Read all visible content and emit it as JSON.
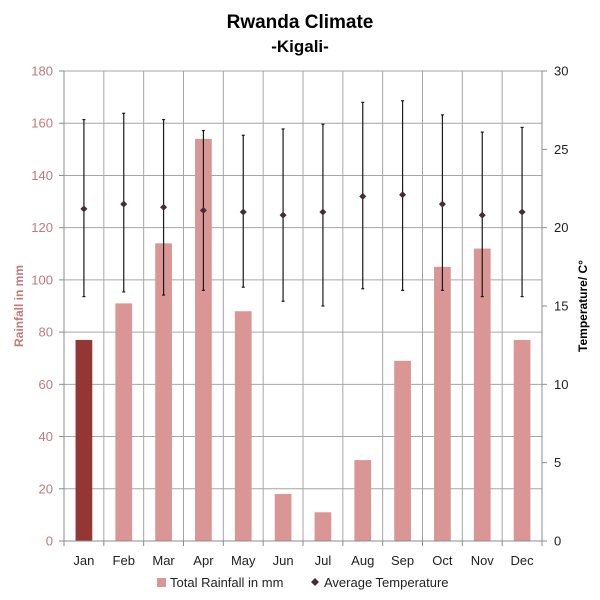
{
  "chart_data": {
    "type": "bar",
    "title": "Rwanda Climate",
    "subtitle": "-Kigali-",
    "categories": [
      "Jan",
      "Feb",
      "Mar",
      "Apr",
      "May",
      "Jun",
      "Jul",
      "Aug",
      "Sep",
      "Oct",
      "Nov",
      "Dec"
    ],
    "series": [
      {
        "name": "Total Rainfall in mm",
        "type": "bar",
        "axis": "left",
        "values": [
          77,
          91,
          114,
          154,
          88,
          18,
          11,
          31,
          69,
          105,
          112,
          77
        ],
        "highlight_index": 0,
        "color": "#d99694",
        "highlight_color": "#943634"
      },
      {
        "name": "Average Temperature",
        "type": "scatter-errorbar",
        "axis": "right",
        "values": [
          21.2,
          21.5,
          21.3,
          21.1,
          21.0,
          20.8,
          21.0,
          22.0,
          22.1,
          21.5,
          20.8,
          21.0
        ],
        "high": [
          26.9,
          27.3,
          26.9,
          26.2,
          25.9,
          26.3,
          26.6,
          28.0,
          28.1,
          27.2,
          26.1,
          26.4
        ],
        "low": [
          15.6,
          15.9,
          15.7,
          16.0,
          16.2,
          15.3,
          15.0,
          16.1,
          16.0,
          16.0,
          15.6,
          15.6
        ],
        "color": "#4a2a3a"
      }
    ],
    "ylabel": "Rainfall in mm",
    "ylim": [
      0,
      180
    ],
    "yticks": [
      0,
      20,
      40,
      60,
      80,
      100,
      120,
      140,
      160,
      180
    ],
    "y2label": "Temperature/ C°",
    "y2lim": [
      0,
      30
    ],
    "y2ticks": [
      0,
      5,
      10,
      15,
      20,
      25,
      30
    ],
    "grid": true,
    "legend_position": "bottom"
  }
}
